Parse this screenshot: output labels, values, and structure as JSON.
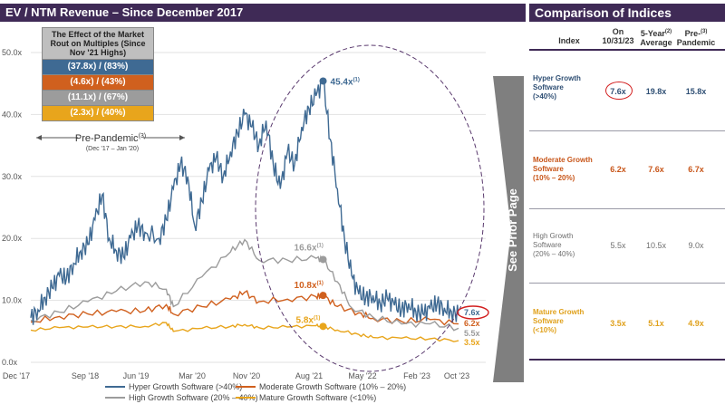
{
  "left_title": "EV / NTM Revenue – Since December 2017",
  "right_title": "Comparison of Indices",
  "inset": {
    "title": "The Effect of the Market Rout on Multiples (Since Nov '21 Highs)",
    "rows": [
      {
        "text": "(37.8x) / (83%)",
        "color": "#3f6a93"
      },
      {
        "text": "(4.6x) / (43%)",
        "color": "#d0601e"
      },
      {
        "text": "(11.1x) / (67%)",
        "color": "#9c9c9c"
      },
      {
        "text": "(2.3x) / (40%)",
        "color": "#e8a51c"
      }
    ]
  },
  "pre_pandemic": {
    "label": "Pre-Pandemic",
    "sup": "(3)",
    "range": "(Dec '17 – Jan '20)"
  },
  "see_prior_page": "See Prior Page",
  "chart_data": {
    "type": "line",
    "ylim": [
      0,
      50
    ],
    "yticks": [
      "0.0x",
      "10.0x",
      "20.0x",
      "30.0x",
      "40.0x",
      "50.0x"
    ],
    "xticks": [
      "Dec '17",
      "Sep '18",
      "Jun '19",
      "Mar '20",
      "Nov '20",
      "Aug '21",
      "May '22",
      "Feb '23",
      "Oct '23"
    ],
    "series": [
      {
        "name": "Hyper Growth Software (>40%)",
        "color": "#3f6a93",
        "points": [
          [
            0,
            7.2
          ],
          [
            0.25,
            8.5
          ],
          [
            0.5,
            10.5
          ],
          [
            0.75,
            12
          ],
          [
            1,
            14
          ],
          [
            1.25,
            13.5
          ],
          [
            1.5,
            16
          ],
          [
            1.75,
            18
          ],
          [
            2,
            19
          ],
          [
            2.25,
            23
          ],
          [
            2.5,
            27
          ],
          [
            2.75,
            20
          ],
          [
            3,
            18
          ],
          [
            3.25,
            17
          ],
          [
            3.5,
            20
          ],
          [
            3.75,
            22
          ],
          [
            4,
            21
          ],
          [
            4.5,
            20
          ],
          [
            4.75,
            23
          ],
          [
            5,
            28
          ],
          [
            5.25,
            32
          ],
          [
            5.5,
            30
          ],
          [
            5.75,
            22
          ],
          [
            6,
            26
          ],
          [
            6.25,
            31
          ],
          [
            6.5,
            33
          ],
          [
            6.75,
            30
          ],
          [
            7,
            34
          ],
          [
            7.25,
            37
          ],
          [
            7.5,
            40
          ],
          [
            7.75,
            38
          ],
          [
            8,
            35
          ],
          [
            8.25,
            39
          ],
          [
            8.5,
            32
          ],
          [
            8.75,
            28
          ],
          [
            9,
            34
          ],
          [
            9.25,
            32
          ],
          [
            9.5,
            38
          ],
          [
            9.75,
            41
          ],
          [
            10,
            43
          ],
          [
            10.25,
            45.4
          ],
          [
            10.5,
            36
          ],
          [
            10.75,
            28
          ],
          [
            11,
            20
          ],
          [
            11.25,
            14
          ],
          [
            11.5,
            11
          ],
          [
            11.75,
            10.5
          ],
          [
            12,
            10.8
          ],
          [
            12.25,
            9.5
          ],
          [
            12.5,
            10.3
          ],
          [
            12.75,
            9.2
          ],
          [
            13,
            8.5
          ],
          [
            13.25,
            9.5
          ],
          [
            13.5,
            8.2
          ],
          [
            13.75,
            7.8
          ],
          [
            14,
            8.6
          ],
          [
            14.25,
            9.5
          ],
          [
            14.5,
            8.8
          ],
          [
            14.75,
            8.2
          ],
          [
            15,
            7.6
          ]
        ]
      },
      {
        "name": "Moderate Growth Software (10% – 20%)",
        "color": "#d0601e",
        "points": [
          [
            0,
            6.5
          ],
          [
            1,
            7.4
          ],
          [
            2,
            7.8
          ],
          [
            3,
            8.2
          ],
          [
            4,
            8.3
          ],
          [
            4.75,
            9.3
          ],
          [
            5,
            7.8
          ],
          [
            6,
            9.0
          ],
          [
            7,
            10.2
          ],
          [
            7.5,
            11.3
          ],
          [
            8,
            9.8
          ],
          [
            9,
            10.2
          ],
          [
            10,
            10.6
          ],
          [
            10.25,
            10.8
          ],
          [
            10.75,
            9.0
          ],
          [
            11.5,
            8.0
          ],
          [
            12,
            7.1
          ],
          [
            13,
            6.6
          ],
          [
            14,
            6.9
          ],
          [
            15,
            6.2
          ]
        ]
      },
      {
        "name": "High Growth Software (20% – 40%)",
        "color": "#9c9c9c",
        "points": [
          [
            0,
            6.8
          ],
          [
            1,
            8.1
          ],
          [
            2,
            9.8
          ],
          [
            3,
            11.5
          ],
          [
            4,
            13.0
          ],
          [
            4.75,
            11.8
          ],
          [
            5,
            9.0
          ],
          [
            6,
            13.8
          ],
          [
            7,
            17.8
          ],
          [
            7.5,
            19.8
          ],
          [
            8,
            16.5
          ],
          [
            9,
            16.5
          ],
          [
            10,
            16.8
          ],
          [
            10.25,
            16.6
          ],
          [
            10.75,
            13.0
          ],
          [
            11.25,
            8.8
          ],
          [
            12,
            7.3
          ],
          [
            13,
            6.2
          ],
          [
            14,
            6.2
          ],
          [
            15,
            5.5
          ]
        ]
      },
      {
        "name": "Mature Growth Software (<10%)",
        "color": "#e8a51c",
        "points": [
          [
            0,
            5.2
          ],
          [
            1,
            5.6
          ],
          [
            2,
            5.7
          ],
          [
            3,
            5.8
          ],
          [
            4,
            5.8
          ],
          [
            4.75,
            6.4
          ],
          [
            5,
            5.0
          ],
          [
            6,
            5.5
          ],
          [
            7,
            5.8
          ],
          [
            7.5,
            6.1
          ],
          [
            8,
            5.6
          ],
          [
            9,
            5.7
          ],
          [
            10,
            5.9
          ],
          [
            10.25,
            5.8
          ],
          [
            10.75,
            5.2
          ],
          [
            11.5,
            4.5
          ],
          [
            12,
            4.0
          ],
          [
            13,
            3.9
          ],
          [
            14,
            3.8
          ],
          [
            15,
            3.5
          ]
        ]
      }
    ],
    "annotations": [
      {
        "text": "45.4x",
        "sup": "(1)",
        "series": 0,
        "x": 10.25,
        "y": 45.4
      },
      {
        "text": "16.6x",
        "sup": "(1)",
        "series": 2,
        "x": 10.25,
        "y": 16.6
      },
      {
        "text": "10.8x",
        "sup": "(1)",
        "series": 1,
        "x": 10.25,
        "y": 10.8
      },
      {
        "text": "5.8x",
        "sup": "(1)",
        "series": 3,
        "x": 10.25,
        "y": 5.8
      }
    ],
    "end_labels": [
      {
        "text": "7.6x",
        "series": 0
      },
      {
        "text": "6.2x",
        "series": 1
      },
      {
        "text": "5.5x",
        "series": 2
      },
      {
        "text": "3.5x",
        "series": 3
      }
    ]
  },
  "comparison": {
    "headers": {
      "index": "Index",
      "on_date": "On 10/31/23",
      "avg": "5-Year",
      "avg_sup": "(2)",
      "avg2": "Average",
      "pre": "Pre-",
      "pre_sup": "(3)",
      "pre2": "Pandemic"
    },
    "rows": [
      {
        "name1": "Hyper Growth",
        "name2": "Software",
        "name3": "(>40%)",
        "on": "7.6x",
        "avg": "19.8x",
        "pre": "15.8x",
        "color": "#2f4f74"
      },
      {
        "name1": "Moderate Growth",
        "name2": "Software",
        "name3": "(10% – 20%)",
        "on": "6.2x",
        "avg": "7.6x",
        "pre": "6.7x",
        "color": "#c8561a"
      },
      {
        "name1": "High Growth",
        "name2": "Software",
        "name3": "(20% – 40%)",
        "on": "5.5x",
        "avg": "10.5x",
        "pre": "9.0x",
        "color": "#6f6f6f"
      },
      {
        "name1": "Mature Growth",
        "name2": "Software",
        "name3": "(<10%)",
        "on": "3.5x",
        "avg": "5.1x",
        "pre": "4.9x",
        "color": "#e0a11c"
      }
    ]
  }
}
